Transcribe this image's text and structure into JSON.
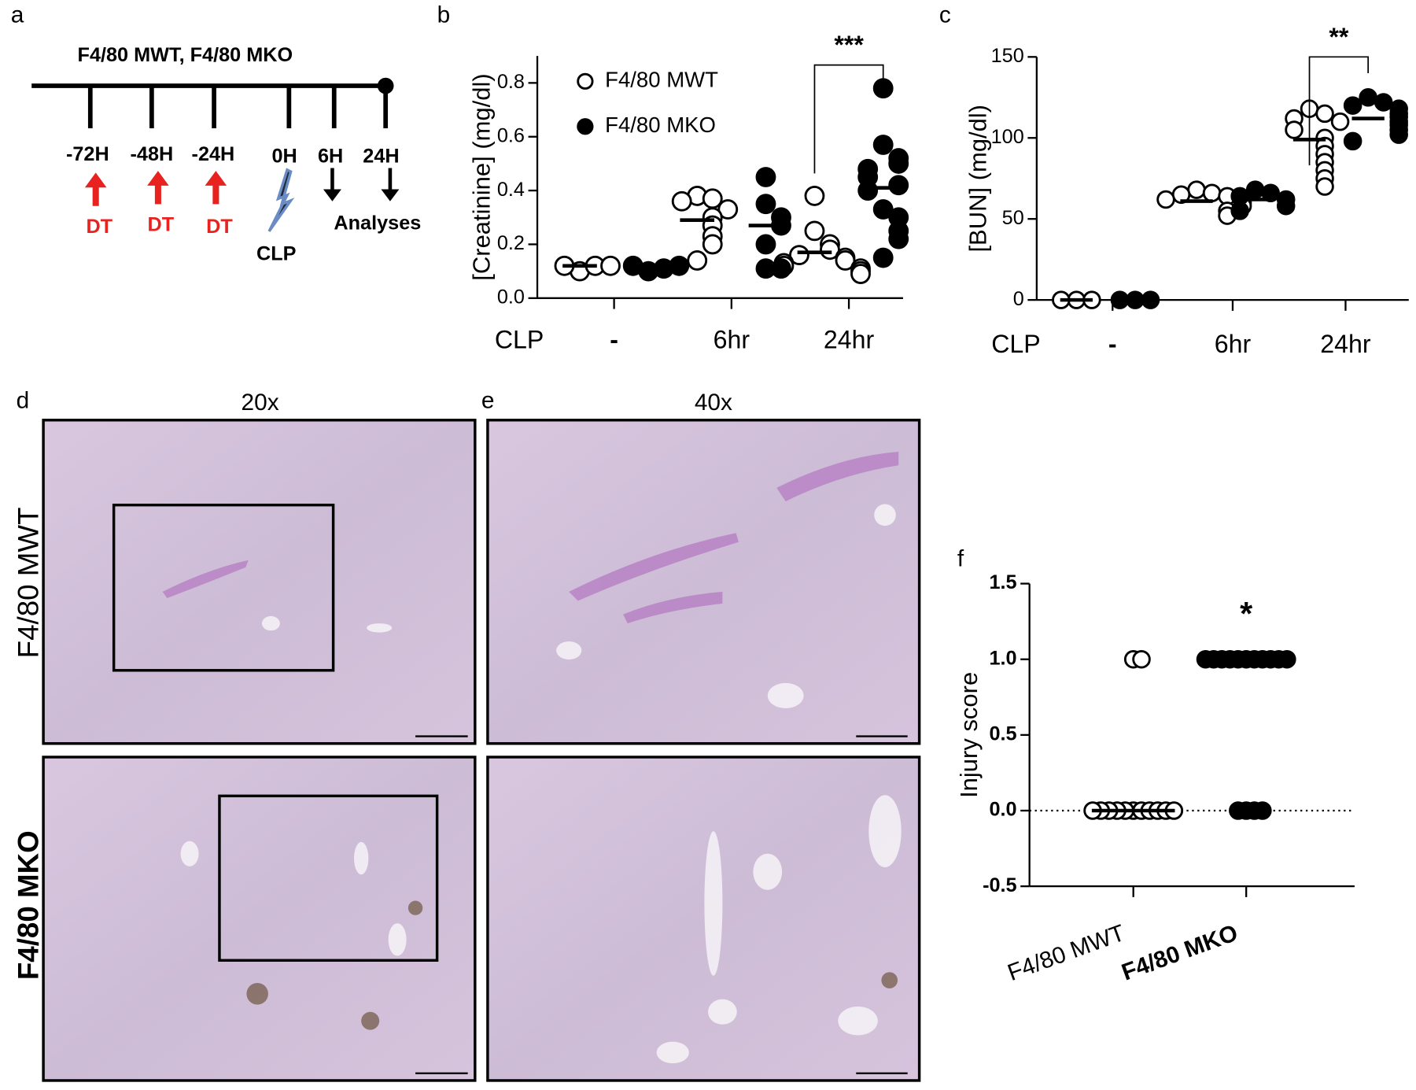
{
  "panels": {
    "a": {
      "label": "a",
      "title": "F4/80 MWT, F4/80 MKO",
      "timepoints": [
        "-72H",
        "-48H",
        "-24H",
        "0H",
        "6H",
        "24H"
      ],
      "treatments": [
        "DT",
        "DT",
        "DT"
      ],
      "procedure": "CLP",
      "readout": "Analyses"
    },
    "b": {
      "label": "b"
    },
    "c": {
      "label": "c"
    },
    "d": {
      "label": "d",
      "magnification": "20x",
      "rows": [
        "F4/80 MWT",
        "F4/80 MKO"
      ]
    },
    "e": {
      "label": "e",
      "magnification": "40x"
    },
    "f": {
      "label": "f"
    }
  },
  "chart_data": [
    {
      "type": "scatter",
      "y_label": "[Creatinine] (mg/dl)",
      "x_label": "CLP",
      "categories": [
        "-",
        "6hr",
        "24hr"
      ],
      "ylim": [
        0,
        0.9
      ],
      "yticks": [
        {
          "value": 0,
          "label": "0.0"
        },
        0.2,
        0.4,
        0.6,
        0.8
      ],
      "legend": true,
      "series": [
        {
          "name": "F4/80 MWT",
          "color": "#000000",
          "marker": "open",
          "values": [
            [
              0.1,
              0.12,
              0.12,
              0.12
            ],
            [
              0.38,
              0.37,
              0.36,
              0.33,
              0.3,
              0.27,
              0.23,
              0.2,
              0.14
            ],
            [
              0.38,
              0.25,
              0.2,
              0.18,
              0.16,
              0.15,
              0.14,
              0.13,
              0.12,
              0.11,
              0.1,
              0.09
            ]
          ],
          "means": [
            0.12,
            0.29,
            0.17
          ]
        },
        {
          "name": "F4/80 MKO",
          "color": "#000000",
          "marker": "filled",
          "values": [
            [
              0.1,
              0.11,
              0.12,
              0.12
            ],
            [
              0.45,
              0.35,
              0.3,
              0.27,
              0.2,
              0.11,
              0.11
            ],
            [
              0.78,
              0.57,
              0.52,
              0.5,
              0.48,
              0.45,
              0.42,
              0.4,
              0.33,
              0.3,
              0.25,
              0.22,
              0.15
            ]
          ],
          "means": [
            0.11,
            0.27,
            0.41
          ]
        }
      ],
      "significance_labels": [
        null,
        null,
        "***"
      ]
    },
    {
      "type": "scatter",
      "y_label": "[BUN] (mg/dl)",
      "x_label": "CLP",
      "categories": [
        "-",
        "6hr",
        "24hr"
      ],
      "ylim": [
        0,
        150
      ],
      "yticks": [
        0,
        50,
        100,
        150
      ],
      "legend": false,
      "series": [
        {
          "name": "F4/80 MWT",
          "color": "#000000",
          "marker": "open",
          "values": [
            [
              0,
              0,
              0
            ],
            [
              68,
              66,
              65,
              64,
              62,
              60,
              58,
              55,
              52
            ],
            [
              118,
              115,
              112,
              110,
              105,
              100,
              95,
              90,
              85,
              80,
              75,
              70
            ]
          ],
          "means": [
            0,
            61,
            99
          ]
        },
        {
          "name": "F4/80 MKO",
          "color": "#000000",
          "marker": "filled",
          "values": [
            [
              0,
              0,
              0
            ],
            [
              68,
              66,
              64,
              62,
              58,
              55
            ],
            [
              125,
              122,
              120,
              118,
              115,
              113,
              110,
              108,
              105,
              102,
              98
            ]
          ],
          "means": [
            0,
            62,
            112
          ]
        }
      ],
      "significance_labels": [
        null,
        null,
        "**"
      ]
    },
    {
      "type": "scatter",
      "y_label": "Injury score",
      "categories": [
        "F4/80 MWT",
        "F4/80 MKO"
      ],
      "ylim": [
        -0.5,
        1.5
      ],
      "yticks": [
        -0.5,
        0.5,
        1.5,
        {
          "value": 0,
          "label": "0.0"
        },
        {
          "value": 1,
          "label": "1.0"
        }
      ],
      "legend": false,
      "reference_line": 0,
      "series": [
        {
          "name": "F4/80 MWT",
          "color": "#000000",
          "marker": "open",
          "values": [
            [
              1,
              1,
              0,
              0,
              0,
              0,
              0,
              0,
              0,
              0,
              0,
              0,
              0
            ],
            []
          ],
          "means": [
            0,
            null
          ]
        },
        {
          "name": "F4/80 MKO",
          "color": "#000000",
          "marker": "filled",
          "values": [
            [],
            [
              1,
              1,
              1,
              1,
              1,
              1,
              1,
              1,
              1,
              1,
              1,
              0,
              0,
              0,
              0
            ]
          ],
          "means": [
            null,
            1
          ]
        }
      ],
      "significance_labels": [
        null,
        "*"
      ]
    }
  ]
}
